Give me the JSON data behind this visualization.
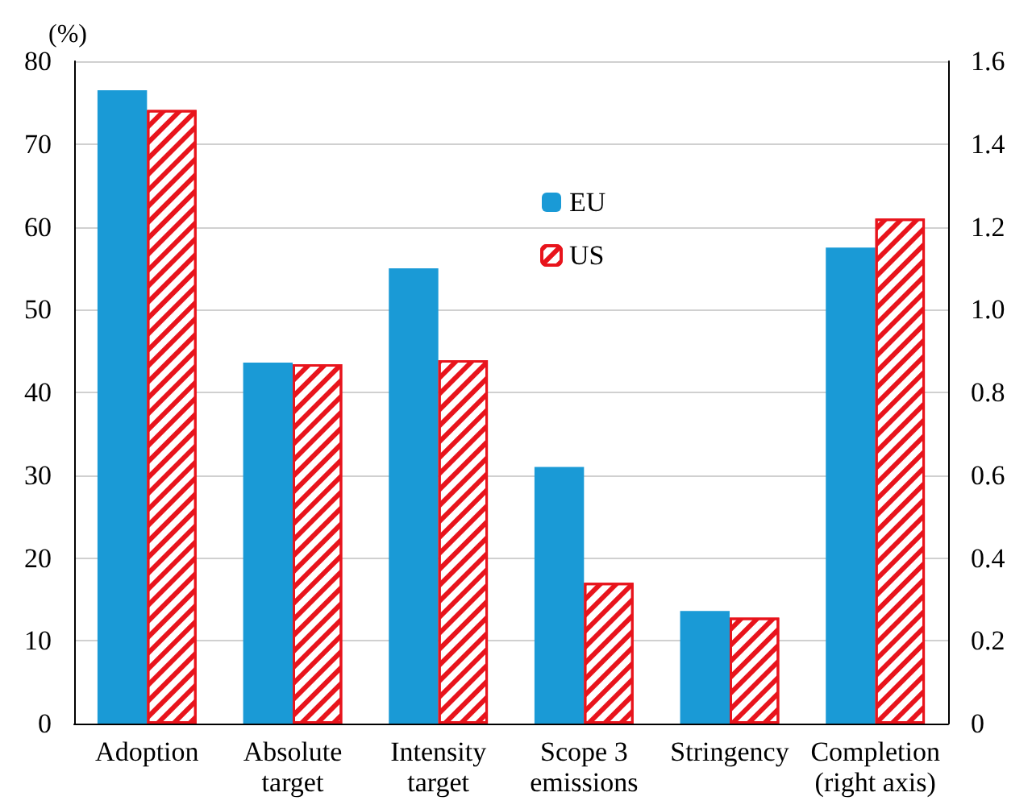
{
  "chart_data": {
    "type": "bar",
    "ylabel": "(%)",
    "categories": [
      "Adoption",
      "Absolute\ntarget",
      "Intensity\ntarget",
      "Scope 3\nemissions",
      "Stringency",
      "Completion\n(right axis)"
    ],
    "series": [
      {
        "name": "EU",
        "color": "#1a9ad6",
        "values": [
          76.5,
          43.6,
          55.0,
          31.0,
          13.6,
          null
        ]
      },
      {
        "name": "US",
        "color": "#e8141c",
        "values": [
          74.1,
          43.4,
          43.9,
          17.0,
          12.8,
          null
        ]
      },
      {
        "color": "#1a9ad6",
        "axis": "y2",
        "values": [
          null,
          null,
          null,
          null,
          null,
          1.15
        ]
      },
      {
        "color": "#e8141c",
        "axis": "y2",
        "values": [
          null,
          null,
          null,
          null,
          null,
          1.22
        ]
      }
    ],
    "ylim": [
      0,
      80
    ],
    "yticks": [
      0,
      10,
      20,
      30,
      40,
      50,
      60,
      70,
      80
    ],
    "y2lim": [
      0,
      1.6
    ],
    "y2ticks": [
      0,
      0.2,
      0.4,
      0.6,
      0.8,
      {
        "value": 1,
        "label": "1.0"
      },
      1.2,
      1.4,
      1.6
    ],
    "grid": "y",
    "legend": "top"
  }
}
